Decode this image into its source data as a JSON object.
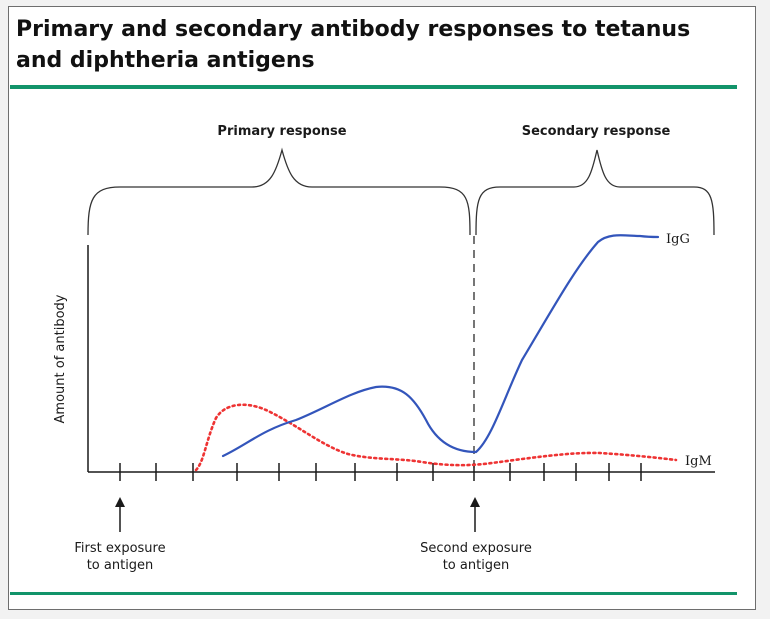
{
  "figure": {
    "title": "Primary and secondary antibody responses to tetanus and diphtheria antigens",
    "labels": {
      "primary_response": "Primary response",
      "secondary_response": "Secondary response",
      "y_axis": "Amount of antibody",
      "first_exposure_line1": "First exposure",
      "first_exposure_line2": "to antigen",
      "second_exposure_line1": "Second exposure",
      "second_exposure_line2": "to antigen"
    },
    "series": {
      "igg": {
        "name": "IgG",
        "color": "#3355bb",
        "style": "solid"
      },
      "igm": {
        "name": "IgM",
        "color": "#ee3333",
        "style": "dotted"
      }
    },
    "colors": {
      "accent_rule": "#12946a",
      "axis": "#1a1a1a"
    }
  }
}
